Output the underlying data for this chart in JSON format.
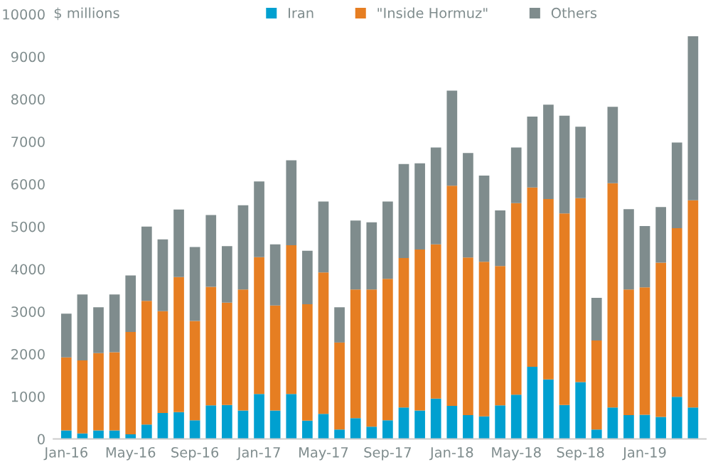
{
  "chart_data": {
    "type": "bar",
    "stacked": true,
    "ylabel": "$ millions",
    "categories": [
      "Jan-16",
      null,
      null,
      null,
      "May-16",
      null,
      null,
      null,
      "Sep-16",
      null,
      null,
      null,
      "Jan-17",
      null,
      null,
      null,
      "May-17",
      null,
      null,
      null,
      "Sep-17",
      null,
      null,
      null,
      "Jan-18",
      null,
      null,
      null,
      "May-18",
      null,
      null,
      null,
      "Sep-18",
      null,
      null,
      null,
      "Jan-19",
      null,
      null,
      null
    ],
    "series": [
      {
        "name": "Iran",
        "color": "#00a0d0",
        "values": [
          200,
          130,
          200,
          200,
          110,
          340,
          610,
          630,
          440,
          790,
          800,
          670,
          1060,
          670,
          1060,
          430,
          590,
          220,
          490,
          290,
          440,
          740,
          670,
          950,
          780,
          560,
          530,
          790,
          1040,
          1700,
          1400,
          800,
          1340,
          220,
          740,
          560,
          570,
          520,
          990,
          740
        ]
      },
      {
        "name": "\"Inside Hormuz\"",
        "color": "#e67e22",
        "values": [
          1720,
          1720,
          1820,
          1840,
          2410,
          2910,
          2400,
          3180,
          2340,
          2790,
          2410,
          2850,
          3220,
          2470,
          3500,
          2740,
          3330,
          2050,
          3030,
          3230,
          3330,
          3520,
          3790,
          3630,
          5180,
          3710,
          3640,
          3280,
          4510,
          4220,
          4250,
          4510,
          4330,
          2100,
          5280,
          2960,
          3000,
          3630,
          3970,
          4880
        ]
      },
      {
        "name": "Others",
        "color": "#7f8c8d",
        "values": [
          1030,
          1550,
          1080,
          1360,
          1330,
          1750,
          1690,
          1590,
          1740,
          1690,
          1330,
          1980,
          1780,
          1440,
          2000,
          1260,
          1670,
          830,
          1620,
          1580,
          1820,
          2210,
          2030,
          2280,
          2240,
          2460,
          2030,
          1310,
          1310,
          1670,
          2220,
          2300,
          1680,
          1000,
          1800,
          1890,
          1440,
          1310,
          2020,
          3860
        ]
      }
    ],
    "ylim": [
      0,
      10000
    ],
    "yticks": [
      0,
      1000,
      2000,
      3000,
      4000,
      5000,
      6000,
      7000,
      8000,
      9000,
      10000
    ],
    "grid": false,
    "legend": "top"
  }
}
